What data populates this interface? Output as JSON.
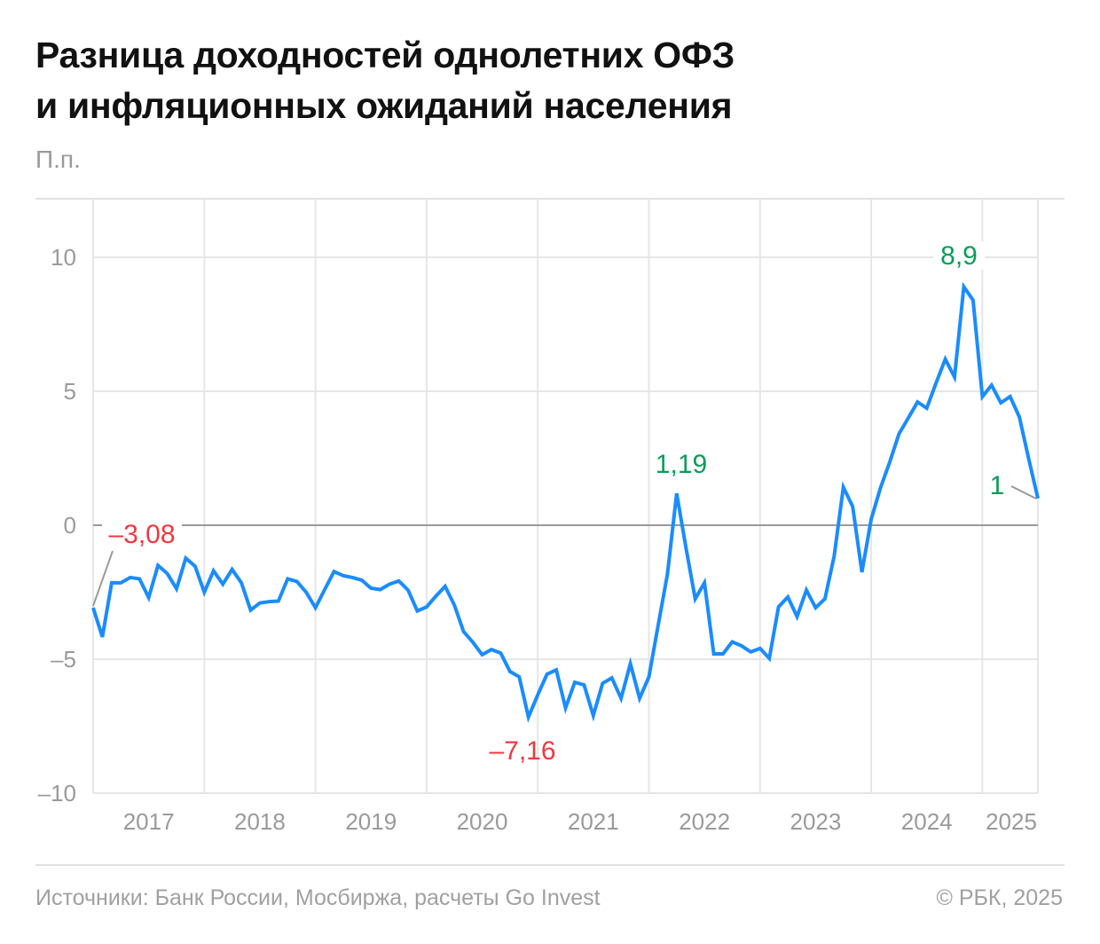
{
  "title_line1": "Разница доходностей однолетних ОФЗ",
  "title_line2": "и инфляционных ожиданий населения",
  "unit": "П.п.",
  "footer": {
    "source": "Источники: Банк России, Мосбиржа, расчеты Go Invest",
    "copyright": "© РБК, 2025"
  },
  "chart_data": {
    "type": "line",
    "title": "Разница доходностей однолетних ОФЗ и инфляционных ожиданий населения",
    "ylabel": "П.п.",
    "xlabel": "",
    "ylim": [
      -10,
      12
    ],
    "y_ticks": [
      10,
      5,
      0,
      -5,
      -10
    ],
    "y_tick_labels": [
      "10",
      "5",
      "0",
      "–5",
      "–10"
    ],
    "x_tick_labels": [
      "2017",
      "2018",
      "2019",
      "2020",
      "2021",
      "2022",
      "2023",
      "2024",
      "2025"
    ],
    "grid": true,
    "x_start": "2017-01",
    "x_end": "2025-07",
    "frequency": "monthly",
    "line_color": "#1a8cff",
    "series": [
      {
        "values": [
          -3.08,
          -4.17,
          -2.15,
          -2.15,
          -1.95,
          -2.0,
          -2.7,
          -1.5,
          -1.8,
          -2.37,
          -1.23,
          -1.53,
          -2.5,
          -1.7,
          -2.2,
          -1.65,
          -2.15,
          -3.17,
          -2.9,
          -2.85,
          -2.83,
          -2.0,
          -2.1,
          -2.5,
          -3.08,
          -2.4,
          -1.73,
          -1.88,
          -1.95,
          -2.05,
          -2.35,
          -2.4,
          -2.2,
          -2.08,
          -2.42,
          -3.2,
          -3.05,
          -2.65,
          -2.28,
          -2.98,
          -3.97,
          -4.37,
          -4.83,
          -4.64,
          -4.77,
          -5.46,
          -5.66,
          -7.16,
          -6.33,
          -5.56,
          -5.4,
          -6.82,
          -5.86,
          -5.96,
          -7.1,
          -5.9,
          -5.7,
          -6.46,
          -5.17,
          -6.46,
          -5.66,
          -3.74,
          -1.82,
          1.19,
          -0.83,
          -2.75,
          -2.15,
          -4.8,
          -4.8,
          -4.35,
          -4.5,
          -4.73,
          -4.6,
          -4.97,
          -3.05,
          -2.68,
          -3.41,
          -2.42,
          -3.08,
          -2.75,
          -1.16,
          1.42,
          0.7,
          -1.75,
          0.23,
          1.39,
          2.35,
          3.41,
          4.0,
          4.6,
          4.37,
          5.3,
          6.2,
          5.53,
          8.9,
          8.4,
          4.8,
          5.23,
          4.57,
          4.8,
          4.04,
          2.48,
          1.0
        ]
      }
    ],
    "annotations": [
      {
        "index": 0,
        "text": "–3,08",
        "color": "#f0383f"
      },
      {
        "index": 47,
        "text": "–7,16",
        "color": "#f0383f"
      },
      {
        "index": 63,
        "text": "1,19",
        "color": "#0a9d58"
      },
      {
        "index": 94,
        "text": "8,9",
        "color": "#0a9d58"
      },
      {
        "index": 102,
        "text": "1",
        "color": "#0a9d58"
      }
    ]
  }
}
